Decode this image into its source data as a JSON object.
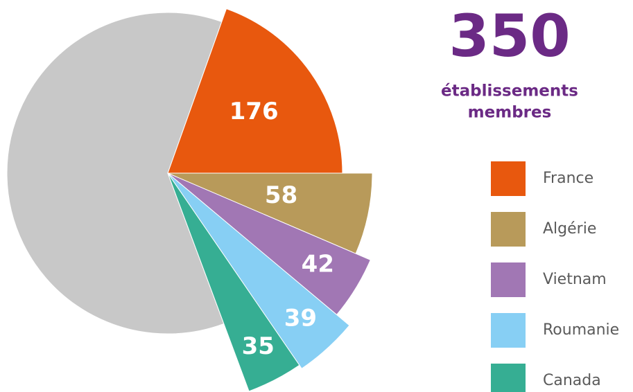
{
  "chart_data": {
    "type": "pie",
    "title": "350",
    "subtitle": [
      "établissements",
      "membres"
    ],
    "categories": [
      "France",
      "Algérie",
      "Vietnam",
      "Roumanie",
      "Canada",
      null
    ],
    "values": [
      176,
      58,
      42,
      39,
      35,
      550
    ],
    "colors": [
      "#e8580e",
      "#b89a5a",
      "#a177b4",
      "#87cff4",
      "#36ae93",
      "#c8c8c8"
    ],
    "legend": "right"
  }
}
